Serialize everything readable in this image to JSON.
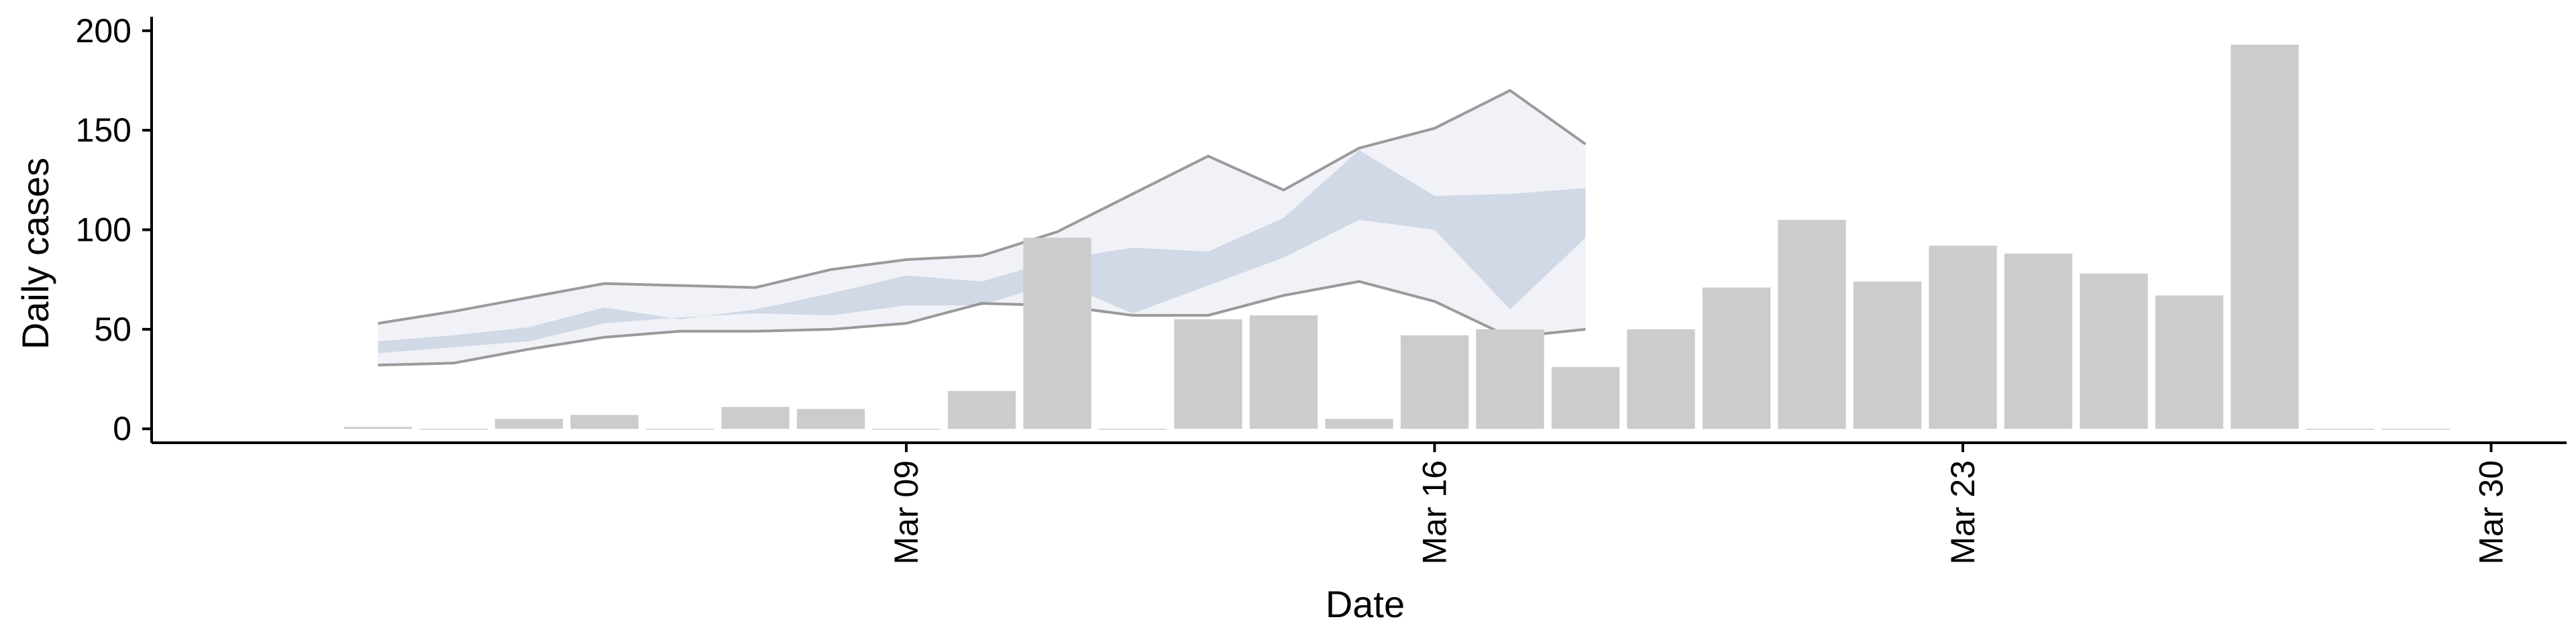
{
  "chart_data": {
    "type": "bar",
    "xlabel": "Date",
    "ylabel": "Daily cases",
    "ylim": [
      -7,
      207
    ],
    "xlim": [
      "2020-02-28",
      "2020-03-31"
    ],
    "yticks": [
      0,
      50,
      100,
      150,
      200
    ],
    "xticks": [
      {
        "date": "2020-03-09",
        "label": "Mar 09"
      },
      {
        "date": "2020-03-16",
        "label": "Mar 16"
      },
      {
        "date": "2020-03-23",
        "label": "Mar 23"
      },
      {
        "date": "2020-03-30",
        "label": "Mar 30"
      }
    ],
    "grid": false,
    "legend": "none",
    "colors": {
      "bars": "#cccccc",
      "axis": "#000000",
      "ribbon": "#b8c2d8",
      "band_fill": "#e4e7f0",
      "band_line": "#8a8a8a"
    },
    "bars": {
      "dates": [
        "2020-03-02",
        "2020-03-03",
        "2020-03-04",
        "2020-03-05",
        "2020-03-06",
        "2020-03-07",
        "2020-03-08",
        "2020-03-09",
        "2020-03-10",
        "2020-03-11",
        "2020-03-12",
        "2020-03-13",
        "2020-03-14",
        "2020-03-15",
        "2020-03-16",
        "2020-03-17",
        "2020-03-18",
        "2020-03-19",
        "2020-03-20",
        "2020-03-21",
        "2020-03-22",
        "2020-03-23",
        "2020-03-24",
        "2020-03-25",
        "2020-03-26",
        "2020-03-27",
        "2020-03-28",
        "2020-03-29"
      ],
      "values": [
        1,
        0,
        5,
        7,
        0,
        11,
        10,
        0,
        19,
        96,
        0,
        55,
        57,
        5,
        47,
        50,
        31,
        50,
        71,
        105,
        74,
        92,
        88,
        78,
        67,
        193,
        0,
        0
      ]
    },
    "band": {
      "dates": [
        "2020-03-02",
        "2020-03-03",
        "2020-03-04",
        "2020-03-05",
        "2020-03-06",
        "2020-03-07",
        "2020-03-08",
        "2020-03-09",
        "2020-03-10",
        "2020-03-11",
        "2020-03-12",
        "2020-03-13",
        "2020-03-14",
        "2020-03-15",
        "2020-03-16",
        "2020-03-17",
        "2020-03-18",
        "2020-03-19",
        "2020-03-20"
      ],
      "upper": [
        53,
        59,
        66,
        73,
        72,
        71,
        80,
        85,
        87,
        99,
        118,
        137,
        120,
        141,
        151,
        170,
        143,
        null,
        null
      ],
      "lower": [
        32,
        33,
        40,
        46,
        49,
        49,
        50,
        53,
        63,
        62,
        57,
        57,
        67,
        74,
        64,
        46,
        50,
        null,
        null
      ],
      "inner_upper": [
        44,
        47,
        51,
        61,
        55,
        60,
        68,
        77,
        74,
        85,
        91,
        89,
        106,
        140,
        117,
        118,
        121,
        null,
        null
      ],
      "inner_lower": [
        38,
        41,
        44,
        53,
        56,
        58,
        57,
        62,
        62,
        74,
        58,
        72,
        86,
        105,
        100,
        60,
        96,
        null,
        null
      ]
    }
  }
}
